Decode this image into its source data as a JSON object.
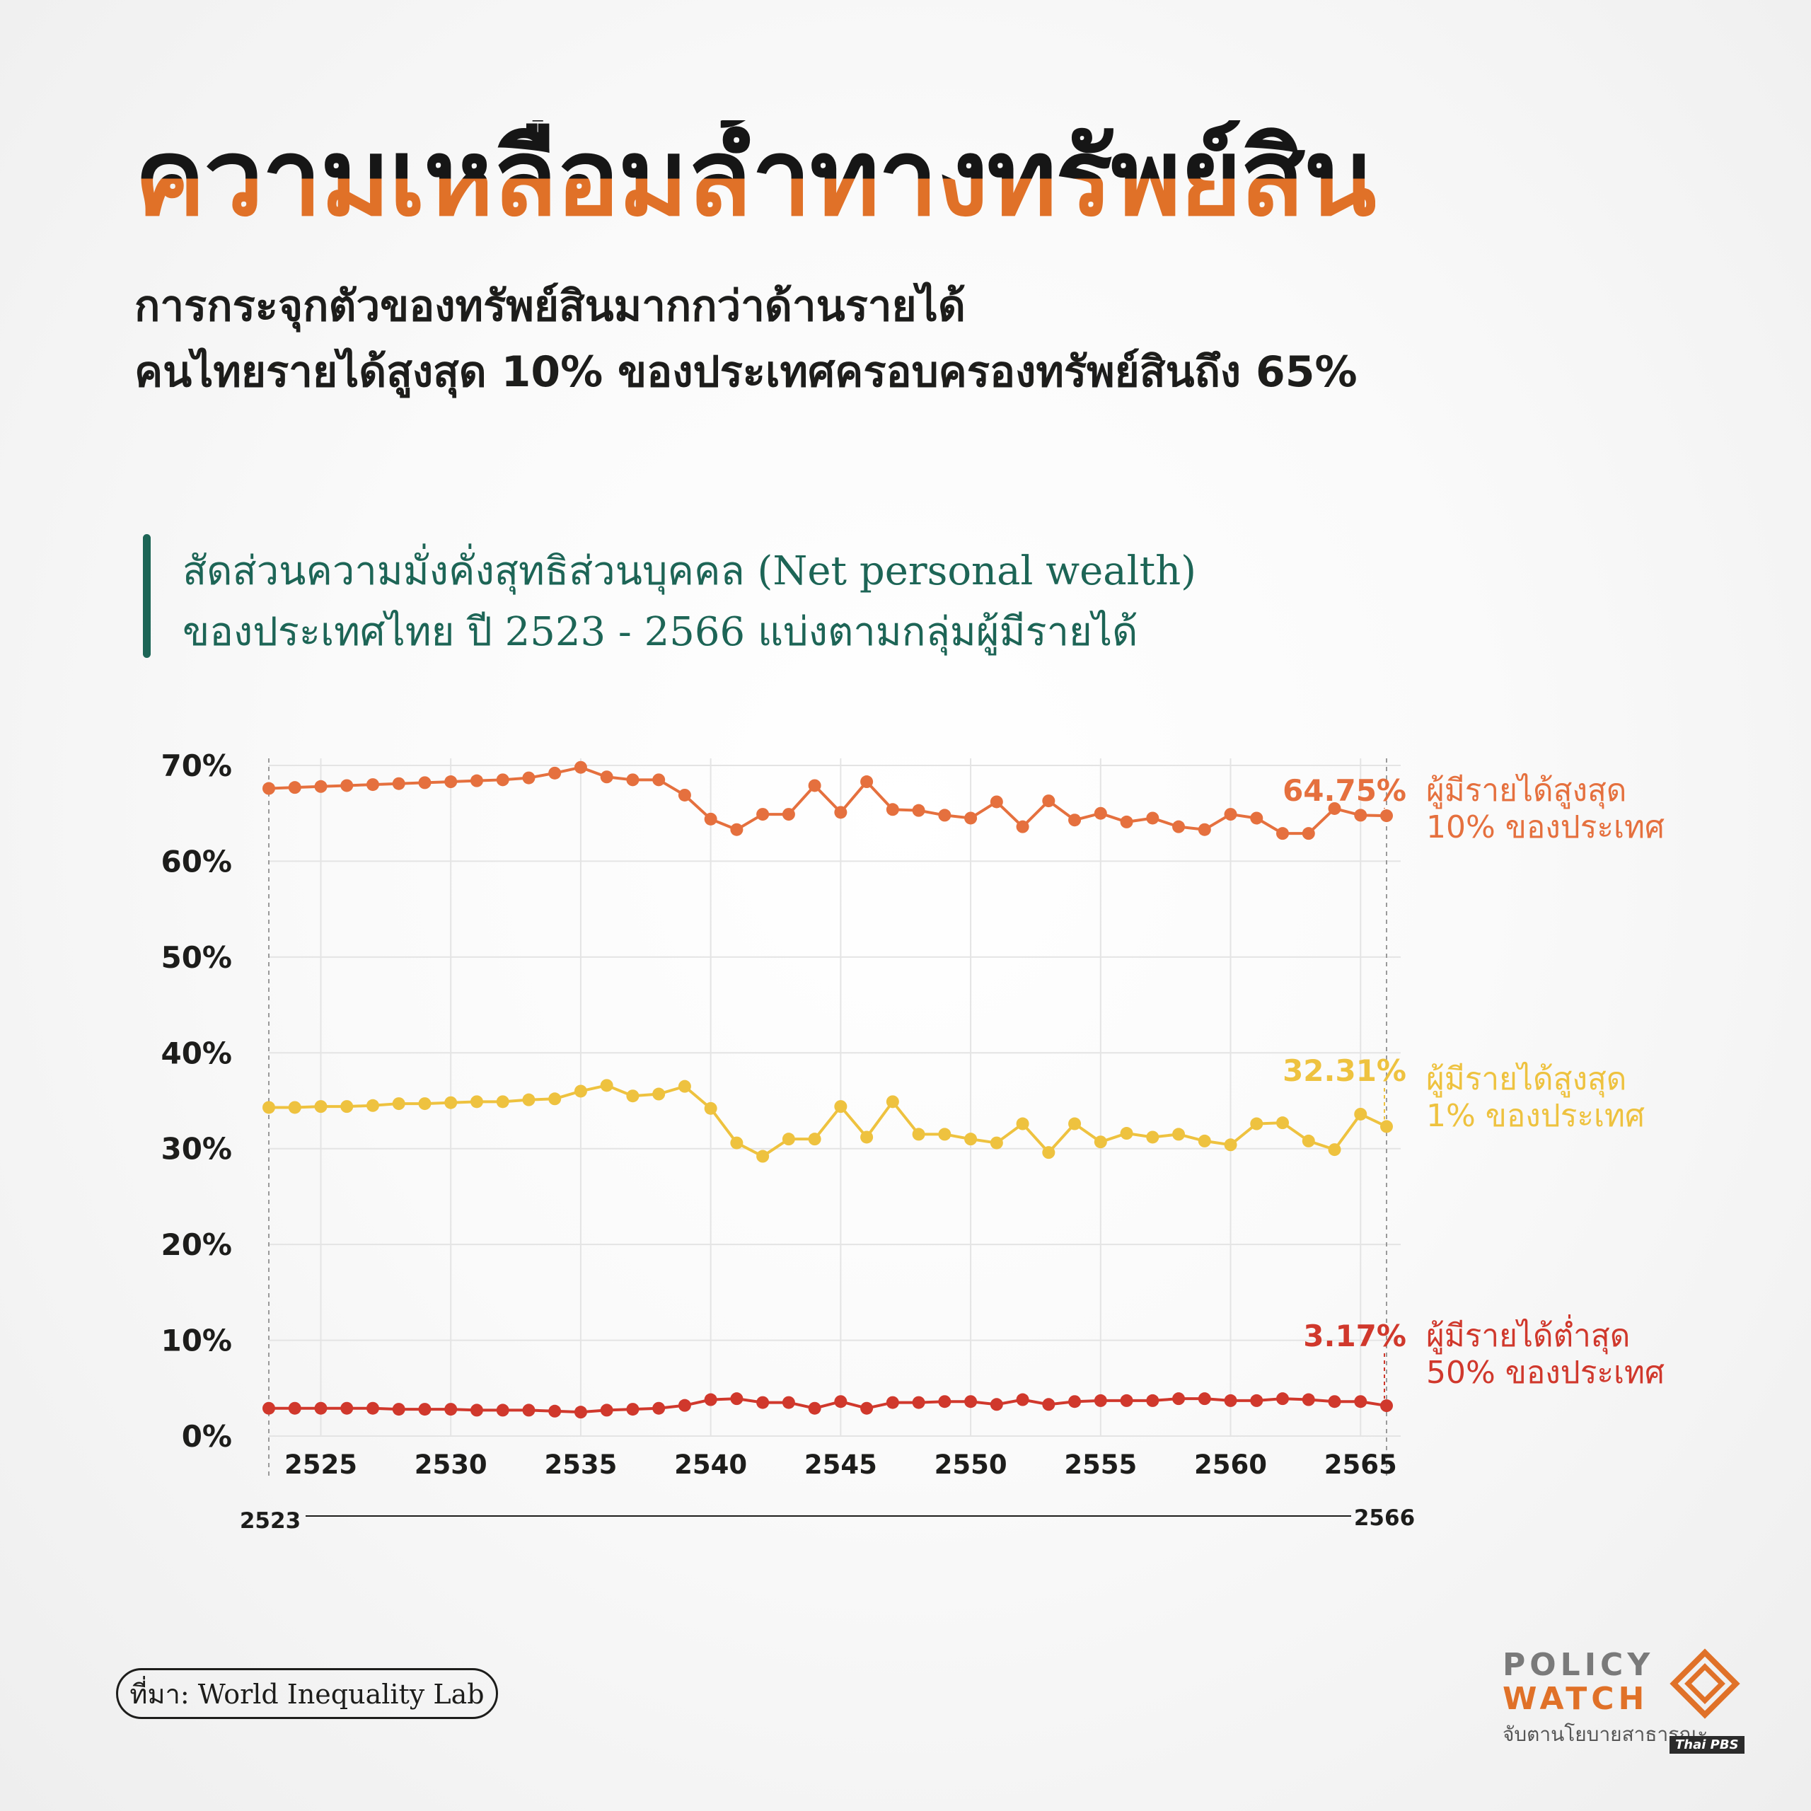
{
  "header": {
    "title": "ความเหลื่อมล้ำทางทรัพย์สิน",
    "subtitle_line1": "การกระจุกตัวของทรัพย์สินมากกว่าด้านรายได้",
    "subtitle_line2": "คนไทยรายได้สูงสุด 10% ของประเทศครอบครองทรัพย์สินถึง 65%"
  },
  "chart_heading": {
    "line1": "สัดส่วนความมั่งคั่งสุทธิส่วนบุคคล (Net personal wealth)",
    "line2": "ของประเทศไทย ปี 2523 - 2566 แบ่งตามกลุ่มผู้มีรายได้"
  },
  "chart_data": {
    "type": "line",
    "title": "",
    "xlabel": "",
    "ylabel": "",
    "ylim": [
      0,
      70
    ],
    "xlim": [
      2523,
      2566
    ],
    "y_ticks": [
      "0%",
      "10%",
      "20%",
      "30%",
      "40%",
      "50%",
      "60%",
      "70%"
    ],
    "x_ticks": [
      "2525",
      "2530",
      "2535",
      "2540",
      "2545",
      "2550",
      "2555",
      "2560",
      "2565"
    ],
    "range_labels": [
      "2523",
      "2566"
    ],
    "grid": true,
    "x": [
      2523,
      2524,
      2525,
      2526,
      2527,
      2528,
      2529,
      2530,
      2531,
      2532,
      2533,
      2534,
      2535,
      2536,
      2537,
      2538,
      2539,
      2540,
      2541,
      2542,
      2543,
      2544,
      2545,
      2546,
      2547,
      2548,
      2549,
      2550,
      2551,
      2552,
      2553,
      2554,
      2555,
      2556,
      2557,
      2558,
      2559,
      2560,
      2561,
      2562,
      2563,
      2564,
      2565,
      2566
    ],
    "series": [
      {
        "name": "ผู้มีรายได้สูงสุด 10% ของประเทศ",
        "label_line1": "ผู้มีรายได้สูงสุด",
        "label_line2": "10% ของประเทศ",
        "end_label": "64.75%",
        "color": "#e5703e",
        "values": [
          67.6,
          67.7,
          67.8,
          67.9,
          68.0,
          68.1,
          68.2,
          68.3,
          68.4,
          68.5,
          68.7,
          69.2,
          69.8,
          68.8,
          68.5,
          68.5,
          66.9,
          64.4,
          63.3,
          64.9,
          64.9,
          67.9,
          65.1,
          68.3,
          65.4,
          65.3,
          64.8,
          64.5,
          66.2,
          63.6,
          66.3,
          64.3,
          65.0,
          64.1,
          64.5,
          63.6,
          63.3,
          64.9,
          64.5,
          62.9,
          62.9,
          65.5,
          64.8,
          64.75
        ]
      },
      {
        "name": "ผู้มีรายได้สูงสุด 1% ของประเทศ",
        "label_line1": "ผู้มีรายได้สูงสุด",
        "label_line2": "1% ของประเทศ",
        "end_label": "32.31%",
        "color": "#eec23f",
        "values": [
          34.3,
          34.3,
          34.4,
          34.4,
          34.5,
          34.7,
          34.7,
          34.8,
          34.9,
          34.9,
          35.1,
          35.2,
          36.0,
          36.6,
          35.5,
          35.7,
          36.5,
          34.2,
          30.6,
          29.2,
          31.0,
          31.0,
          34.4,
          31.2,
          34.9,
          31.5,
          31.5,
          31.0,
          30.6,
          32.6,
          29.6,
          32.6,
          30.7,
          31.6,
          31.2,
          31.5,
          30.8,
          30.4,
          32.6,
          32.7,
          30.8,
          29.9,
          33.6,
          32.31
        ]
      },
      {
        "name": "ผู้มีรายได้ต่ำสุด 50% ของประเทศ",
        "label_line1": "ผู้มีรายได้ต่ำสุด",
        "label_line2": "50% ของประเทศ",
        "end_label": "3.17%",
        "color": "#d0382c",
        "values": [
          2.9,
          2.9,
          2.9,
          2.9,
          2.9,
          2.8,
          2.8,
          2.8,
          2.7,
          2.7,
          2.7,
          2.6,
          2.5,
          2.7,
          2.8,
          2.9,
          3.2,
          3.8,
          3.9,
          3.5,
          3.5,
          2.9,
          3.6,
          2.9,
          3.5,
          3.5,
          3.6,
          3.6,
          3.3,
          3.8,
          3.3,
          3.6,
          3.7,
          3.7,
          3.7,
          3.9,
          3.9,
          3.7,
          3.7,
          3.9,
          3.8,
          3.6,
          3.6,
          3.17
        ]
      }
    ]
  },
  "source": "ที่มา: World Inequality Lab",
  "logo": {
    "line1": "POLICY",
    "line2": "WATCH",
    "tagline": "จับตานโยบายสาธารณะ",
    "badge": "Thai PBS"
  }
}
